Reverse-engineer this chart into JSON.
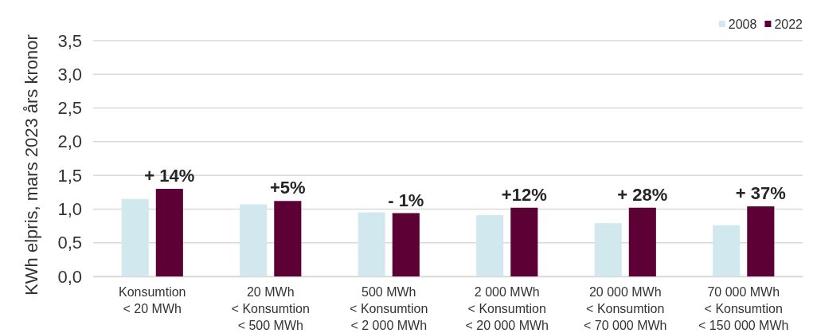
{
  "chart_data": {
    "type": "bar",
    "ylabel": "KWh elpris, mars 2023 års kronor",
    "categories": [
      "Konsumtion\n< 20 MWh",
      "20 MWh\n< Konsumtion\n< 500 MWh",
      "500 MWh\n< Konsumtion\n< 2 000 MWh",
      "2 000 MWh\n< Konsumtion\n< 20 000 MWh",
      "20 000 MWh\n< Konsumtion\n< 70 000 MWh",
      "70 000 MWh\n< Konsumtion\n< 150 000 MWh"
    ],
    "series": [
      {
        "name": "2008",
        "color": "#d1e8ef",
        "values": [
          1.15,
          1.07,
          0.95,
          0.91,
          0.79,
          0.76
        ]
      },
      {
        "name": "2022",
        "color": "#5c0035",
        "values": [
          1.3,
          1.12,
          0.94,
          1.02,
          1.02,
          1.04
        ]
      }
    ],
    "annotations": [
      {
        "text": "+ 14%",
        "x": "Konsumtion\n< 20 MWh",
        "y": 1.3
      },
      {
        "text": "+5%",
        "x": "20 MWh\n< Konsumtion\n< 500 MWh",
        "y": 1.12
      },
      {
        "text": "- 1%",
        "x": "500 MWh\n< Konsumtion\n< 2 000 MWh",
        "y": 0.94
      },
      {
        "text": "+12%",
        "x": "2 000 MWh\n< Konsumtion\n< 20 000 MWh",
        "y": 1.02
      },
      {
        "text": "+ 28%",
        "x": "20 000 MWh\n< Konsumtion\n< 70 000 MWh",
        "y": 1.02
      },
      {
        "text": "+ 37%",
        "x": "70 000 MWh\n< Konsumtion\n< 150 000 MWh",
        "y": 1.04
      }
    ],
    "ylim": [
      0,
      3.5
    ],
    "yticks": [
      {
        "value": 0,
        "label": "0,0"
      },
      {
        "value": 0.5,
        "label": "0,5"
      },
      {
        "value": 1,
        "label": "1,0"
      },
      {
        "value": 1.5,
        "label": "1,5"
      },
      {
        "value": 2,
        "label": "2,0"
      },
      {
        "value": 2.5,
        "label": "2,5"
      },
      {
        "value": 3,
        "label": "3,0"
      },
      {
        "value": 3.5,
        "label": "3,5"
      }
    ],
    "grid": "y",
    "legend": "top right"
  }
}
